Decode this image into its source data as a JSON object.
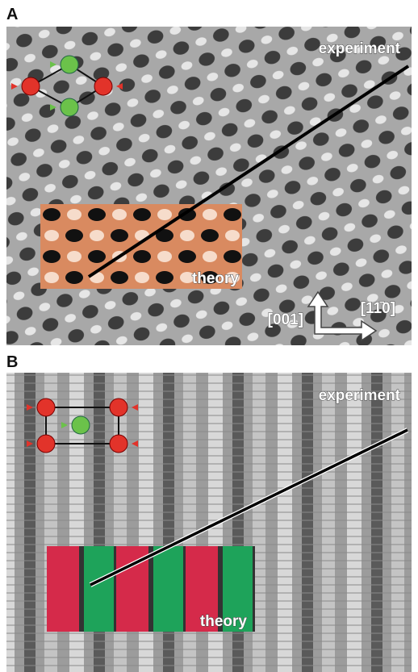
{
  "panels": [
    {
      "label": "A",
      "experiment_label": "experiment",
      "theory_label": "theory",
      "directions": [
        "[001]",
        "[11̄0]"
      ]
    },
    {
      "label": "B",
      "experiment_label": "experiment",
      "theory_label": "theory"
    }
  ]
}
